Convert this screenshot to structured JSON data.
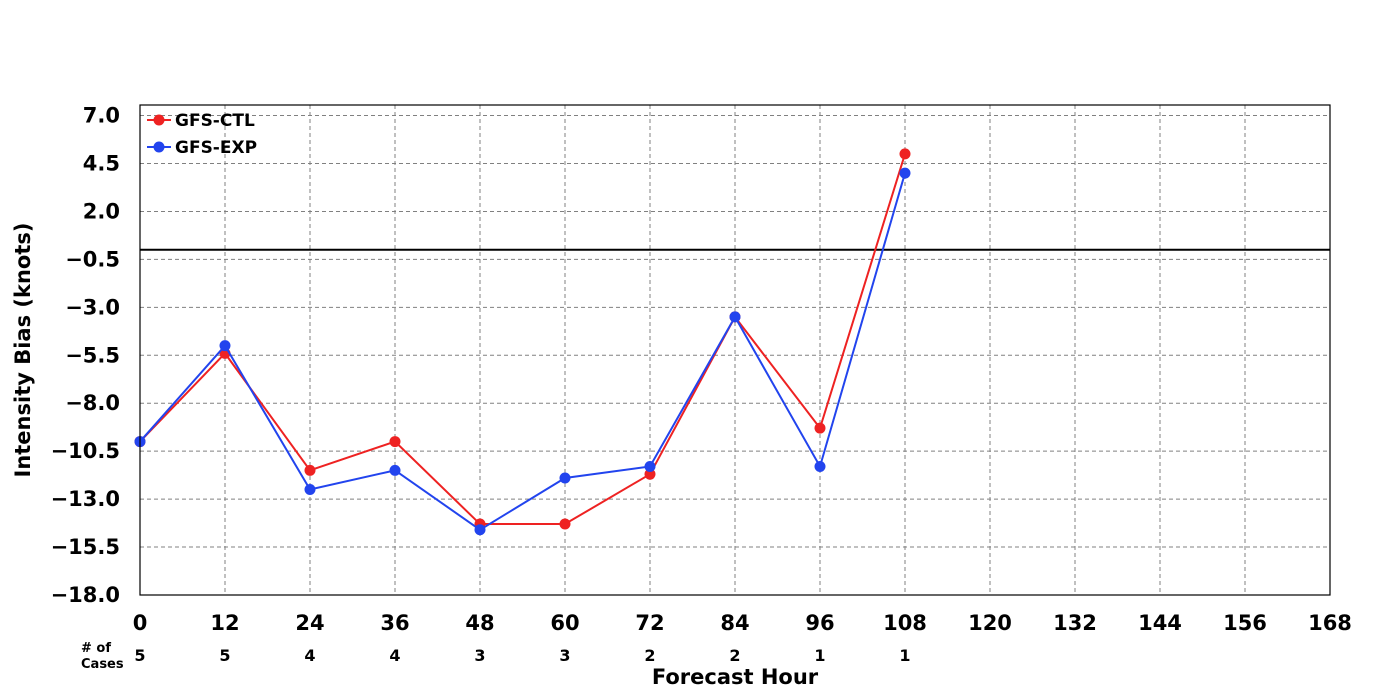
{
  "chart_data": {
    "type": "line",
    "xlabel": "Forecast Hour",
    "ylabel": "Intensity Bias (knots)",
    "xlim": [
      0,
      168
    ],
    "ylim": [
      -18.0,
      7.0
    ],
    "x_ticks": [
      0,
      12,
      24,
      36,
      48,
      60,
      72,
      84,
      96,
      108,
      120,
      132,
      144,
      156,
      168
    ],
    "y_ticks": [
      "7.0",
      "4.5",
      "2.0",
      "−0.5",
      "−3.0",
      "−5.5",
      "−8.0",
      "−10.5",
      "−13.0",
      "−15.5",
      "−18.0"
    ],
    "y_tick_values": [
      7.0,
      4.5,
      2.0,
      -0.5,
      -3.0,
      -5.5,
      -8.0,
      -10.5,
      -13.0,
      -15.5,
      -18.0
    ],
    "grid": true,
    "zero_line": 0,
    "legend_position": "top-left",
    "series": [
      {
        "name": "GFS-CTL",
        "color": "#ee2222",
        "x": [
          0,
          12,
          24,
          36,
          48,
          60,
          72,
          84,
          96,
          108
        ],
        "y": [
          -10.0,
          -5.4,
          -11.5,
          -10.0,
          -14.3,
          -14.3,
          -11.7,
          -3.5,
          -9.3,
          5.0
        ]
      },
      {
        "name": "GFS-EXP",
        "color": "#2244ee",
        "x": [
          0,
          12,
          24,
          36,
          48,
          60,
          72,
          84,
          96,
          108
        ],
        "y": [
          -10.0,
          -5.0,
          -12.5,
          -11.5,
          -14.6,
          -11.9,
          -11.3,
          -3.5,
          -11.3,
          4.0
        ]
      }
    ],
    "cases_label_line1": "# of",
    "cases_label_line2": "Cases",
    "cases_x": [
      0,
      12,
      24,
      36,
      48,
      60,
      72,
      84,
      96,
      108
    ],
    "cases": [
      "5",
      "5",
      "4",
      "4",
      "3",
      "3",
      "2",
      "2",
      "1",
      "1"
    ]
  }
}
